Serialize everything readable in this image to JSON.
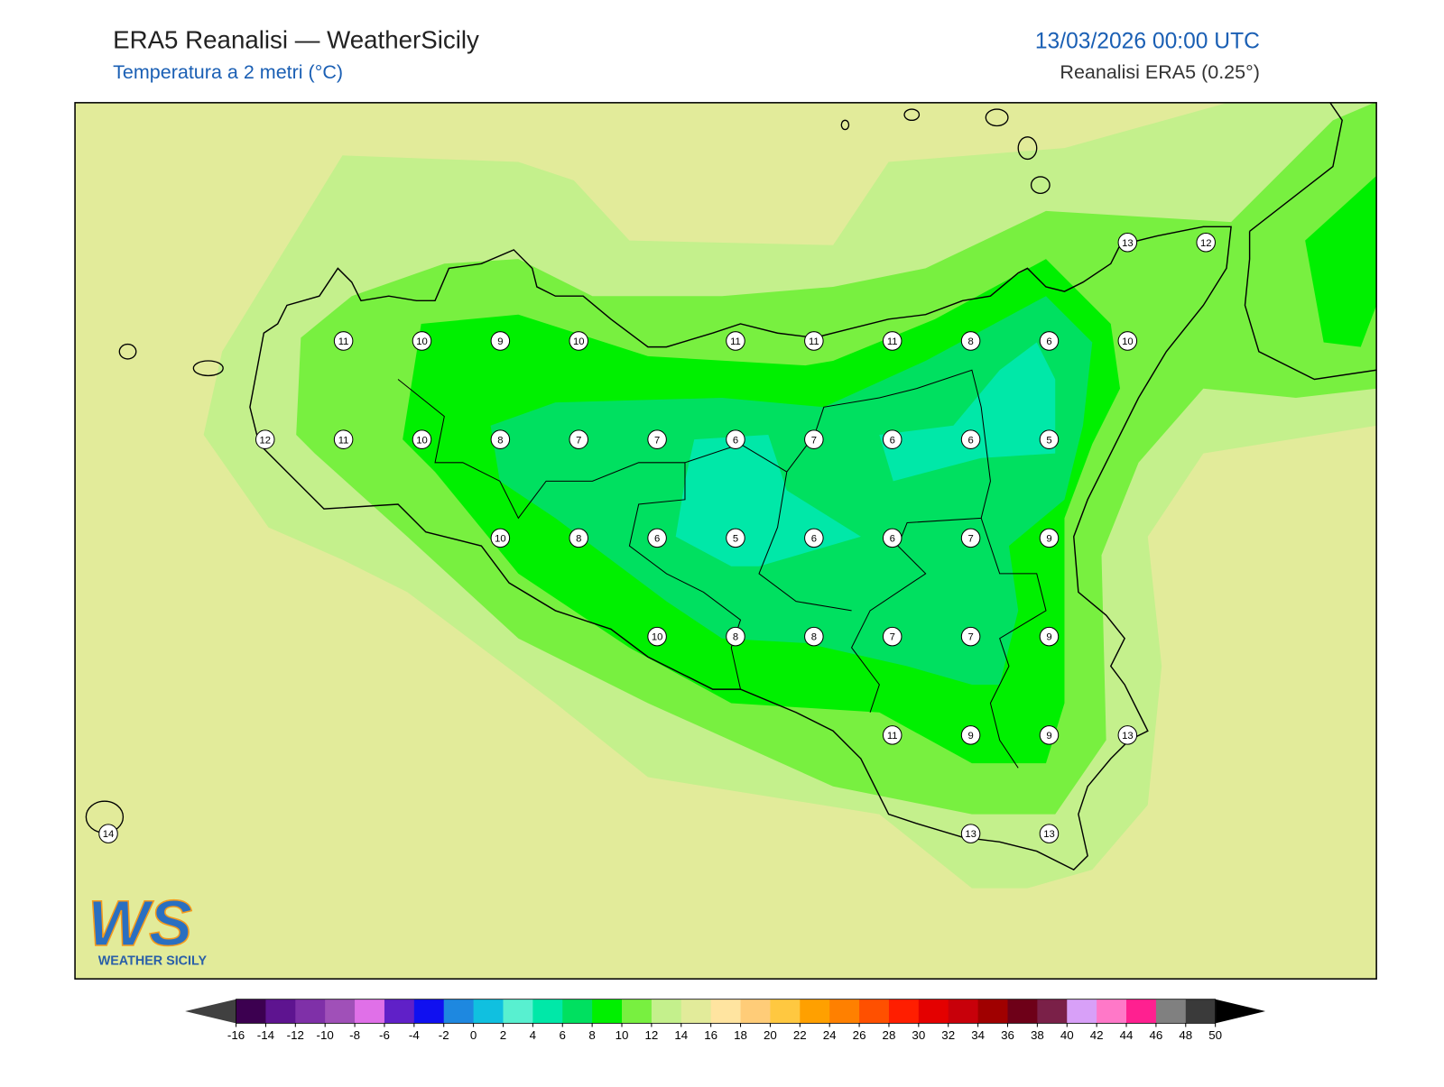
{
  "header": {
    "title": "ERA5 Reanalisi — WeatherSicily",
    "subtitle": "Temperatura a 2 metri (°C)",
    "datetime": "13/03/2026 00:00 UTC",
    "source": "Reanalisi ERA5 (0.25°)"
  },
  "stations": {
    "rows": [
      [
        null,
        null,
        null,
        null,
        null,
        null,
        null,
        null,
        null,
        null,
        null,
        null,
        null,
        13,
        12
      ],
      [
        null,
        null,
        null,
        11,
        10,
        9,
        10,
        null,
        11,
        11,
        11,
        8,
        6,
        10,
        null
      ],
      [
        null,
        null,
        12,
        11,
        10,
        8,
        7,
        7,
        6,
        7,
        6,
        6,
        5,
        null,
        null
      ],
      [
        null,
        null,
        null,
        null,
        null,
        10,
        8,
        6,
        5,
        6,
        6,
        7,
        9,
        null,
        null
      ],
      [
        null,
        null,
        null,
        null,
        null,
        null,
        null,
        10,
        8,
        8,
        7,
        7,
        9,
        null,
        null
      ],
      [
        null,
        null,
        null,
        null,
        null,
        null,
        null,
        null,
        null,
        null,
        11,
        9,
        9,
        13,
        null
      ],
      [
        14,
        null,
        null,
        null,
        null,
        null,
        null,
        null,
        null,
        null,
        null,
        13,
        13,
        null,
        null
      ]
    ]
  },
  "colorbar": {
    "ticks": [
      -16,
      -14,
      -12,
      -10,
      -8,
      -6,
      -4,
      -2,
      0,
      2,
      4,
      6,
      8,
      10,
      12,
      14,
      16,
      18,
      20,
      22,
      24,
      26,
      28,
      30,
      32,
      34,
      36,
      38,
      40,
      42,
      44,
      46,
      48,
      50
    ],
    "colors": [
      "#3c0050",
      "#5e1490",
      "#7f30a8",
      "#a050b8",
      "#e070e8",
      "#6020c8",
      "#1010f0",
      "#1e88e0",
      "#10c0e0",
      "#58f0d0",
      "#00e8a8",
      "#00e060",
      "#00f000",
      "#78f040",
      "#c4f08c",
      "#e2eb9a",
      "#ffe4a0",
      "#ffcc78",
      "#ffc840",
      "#ffa000",
      "#ff8000",
      "#ff5000",
      "#ff1e00",
      "#e40000",
      "#c8000a",
      "#a00000",
      "#6e0018",
      "#7a2048",
      "#d8a0f8",
      "#ff78c8",
      "#ff2090",
      "#808080",
      "#3a3a3a"
    ],
    "under_color": "#404040",
    "over_color": "#000000"
  },
  "logo": {
    "initials": "WS",
    "name": "WEATHER SICILY"
  }
}
